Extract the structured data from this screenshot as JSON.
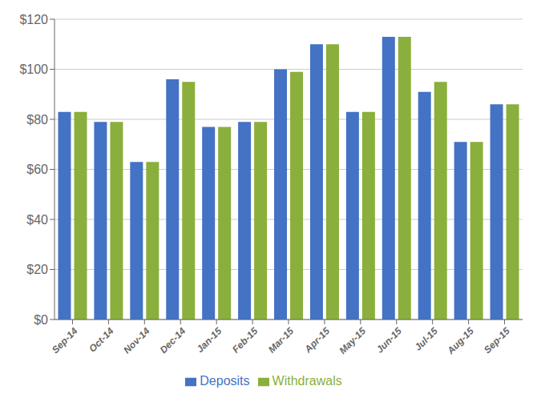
{
  "chart_data": {
    "type": "bar",
    "categories": [
      "Sep-14",
      "Oct-14",
      "Nov-14",
      "Dec-14",
      "Jan-15",
      "Feb-15",
      "Mar-15",
      "Apr-15",
      "May-15",
      "Jun-15",
      "Jul-15",
      "Aug-15",
      "Sep-15"
    ],
    "series": [
      {
        "name": "Deposits",
        "color": "#4472C4",
        "values": [
          83,
          79,
          63,
          96,
          77,
          79,
          100,
          110,
          83,
          113,
          91,
          71,
          86
        ]
      },
      {
        "name": "Withdrawals",
        "color": "#8AAF3C",
        "values": [
          83,
          79,
          63,
          95,
          77,
          79,
          99,
          110,
          83,
          113,
          95,
          71,
          86
        ]
      }
    ],
    "ylim": [
      0,
      120
    ],
    "yticks": [
      {
        "value": 0,
        "label": "$0"
      },
      {
        "value": 20,
        "label": "$20"
      },
      {
        "value": 40,
        "label": "$40"
      },
      {
        "value": 60,
        "label": "$60"
      },
      {
        "value": 80,
        "label": "$80"
      },
      {
        "value": 100,
        "label": "$100"
      },
      {
        "value": 120,
        "label": "$120"
      }
    ],
    "grid": true,
    "legend": "bottom"
  }
}
